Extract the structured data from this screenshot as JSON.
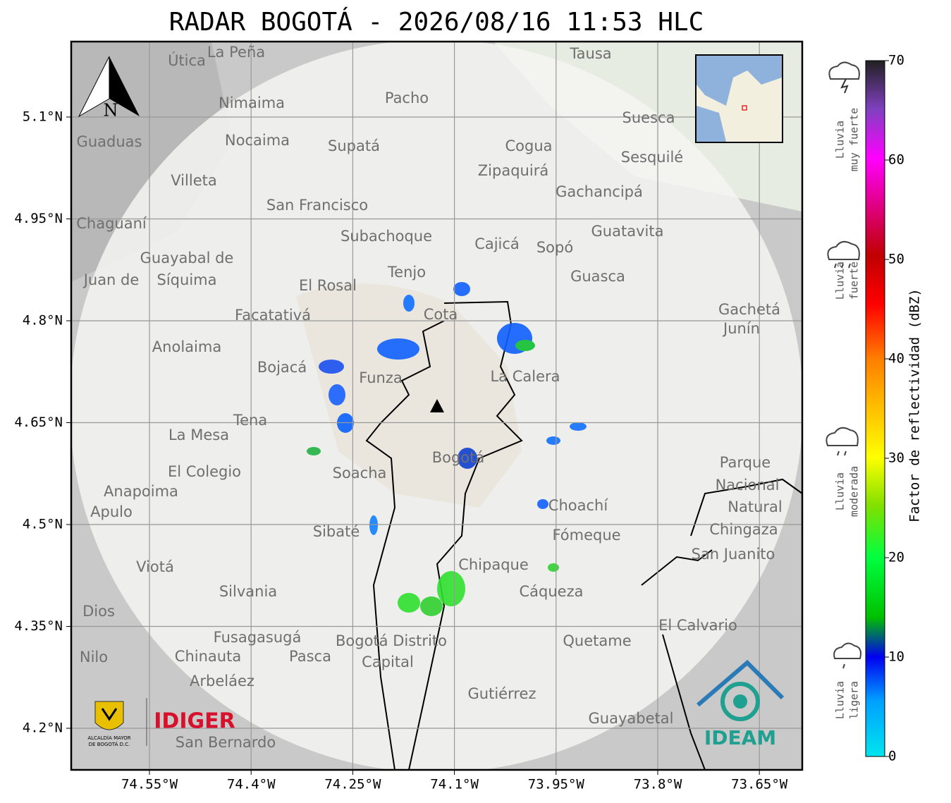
{
  "title": "RADAR BOGOTÁ - 2026/08/16 11:53 HLC",
  "map": {
    "north": "N",
    "lat_ticks": [
      {
        "value": 5.1,
        "label": "5.1°N"
      },
      {
        "value": 4.95,
        "label": "4.95°N"
      },
      {
        "value": 4.8,
        "label": "4.8°N"
      },
      {
        "value": 4.65,
        "label": "4.65°N"
      },
      {
        "value": 4.5,
        "label": "4.5°N"
      },
      {
        "value": 4.35,
        "label": "4.35°N"
      },
      {
        "value": 4.2,
        "label": "4.2°N"
      }
    ],
    "lon_ticks": [
      {
        "value": -74.55,
        "label": "74.55°W"
      },
      {
        "value": -74.4,
        "label": "74.4°W"
      },
      {
        "value": -74.25,
        "label": "74.25°W"
      },
      {
        "value": -74.1,
        "label": "74.1°W"
      },
      {
        "value": -73.95,
        "label": "73.95°W"
      },
      {
        "value": -73.8,
        "label": "73.8°W"
      },
      {
        "value": -73.65,
        "label": "73.65°W"
      }
    ],
    "places": [
      "La Peña",
      "Útica",
      "Tausa",
      "Pacho",
      "Nimaima",
      "Guaduas",
      "Nocaima",
      "Supatá",
      "Suesca",
      "Cogua",
      "Sesquilé",
      "Zipaquirá",
      "Villeta",
      "Gachancipá",
      "San Francisco",
      "Chaguaní",
      "Guatavita",
      "Subachoque",
      "Cajicá",
      "Sopó",
      "Guayabal de",
      "Síquima",
      "Juan de",
      "Tenjo",
      "Guasca",
      "El Rosal",
      "Facatativá",
      "Cota",
      "Gachetá",
      "Junín",
      "Anolaima",
      "Bojacá",
      "Funza",
      "La Calera",
      "Tena",
      "La Mesa",
      "Bogotá",
      "Soacha",
      "El Colegio",
      "Parque",
      "Nacional",
      "Natural",
      "Chingaza",
      "Anapoima",
      "Apulo",
      "Choachí",
      "Fómeque",
      "Sibaté",
      "San Juanito",
      "Viotá",
      "Chipaque",
      "Silvania",
      "Cáqueza",
      "Dios",
      "El Calvario",
      "Fusagasugá",
      "Bogotá Distrito",
      "Capital",
      "Quetame",
      "Nilo",
      "Chinauta",
      "Pasca",
      "Arbeláez",
      "Gutiérrez",
      "Guayabetal",
      "San Bernardo"
    ]
  },
  "colorbar": {
    "label": "Factor de reflectividad (dBZ)",
    "range": [
      0,
      70
    ],
    "ticks": [
      0,
      10,
      20,
      30,
      40,
      50,
      60,
      70
    ]
  },
  "legend": [
    [
      "Lluvia",
      "muy fuerte"
    ],
    [
      "Lluvia",
      "fuerte"
    ],
    [
      "Lluvia",
      "moderada"
    ],
    [
      "Lluvia",
      "ligera"
    ]
  ],
  "logos": {
    "alcaldia": [
      "ALCALDÍA MAYOR",
      "DE BOGOTÁ D.C."
    ],
    "idiger": "IDIGER",
    "ideam": "IDEAM"
  }
}
